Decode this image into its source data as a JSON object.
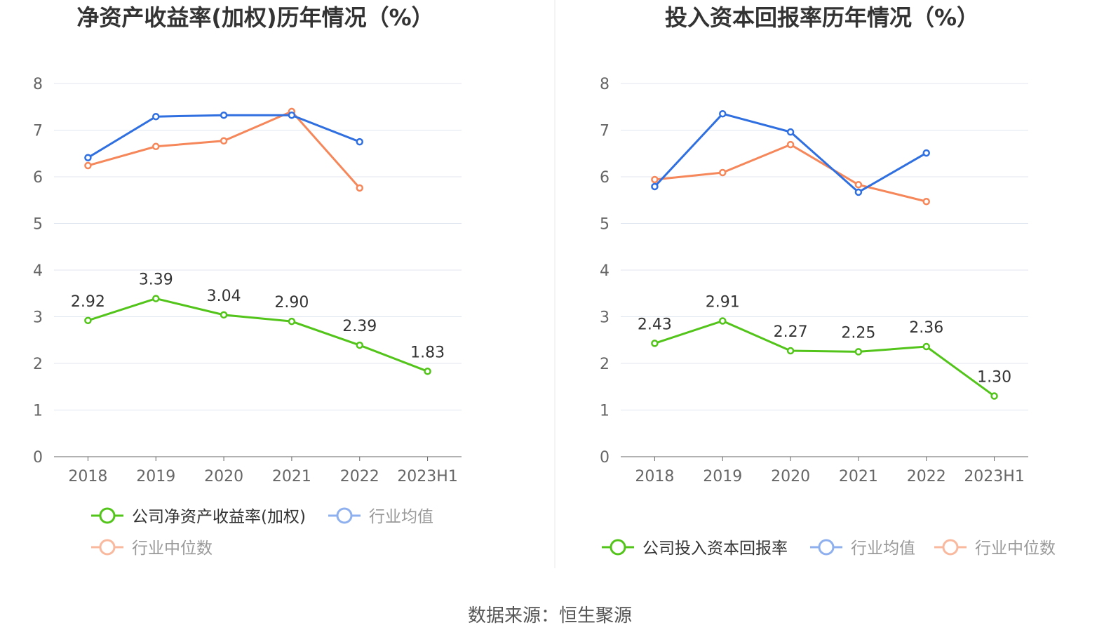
{
  "colors": {
    "company": "#52c41a",
    "avg": "#2f6fe0",
    "median": "#f5875a",
    "avg_legend": "#8fb0ee",
    "median_legend": "#f9b99e",
    "grid": "#e0e6f0"
  },
  "source": "数据来源：恒生聚源",
  "chart_data": [
    {
      "type": "line",
      "title": "净资产收益率(加权)历年情况（%）",
      "categories": [
        "2018",
        "2019",
        "2020",
        "2021",
        "2022",
        "2023H1"
      ],
      "ylim": [
        0,
        8
      ],
      "yticks": [
        "0",
        "1",
        "2",
        "3",
        "4",
        "5",
        "6",
        "7",
        "8"
      ],
      "series": [
        {
          "name": "公司净资产收益率(加权)",
          "key": "company",
          "values": [
            2.92,
            3.39,
            3.04,
            2.9,
            2.39,
            1.83
          ],
          "labels": [
            "2.92",
            "3.39",
            "3.04",
            "2.90",
            "2.39",
            "1.83"
          ]
        },
        {
          "name": "行业均值",
          "key": "avg",
          "values": [
            6.41,
            7.29,
            7.32,
            7.32,
            6.75,
            null
          ]
        },
        {
          "name": "行业中位数",
          "key": "median",
          "values": [
            6.24,
            6.65,
            6.77,
            7.4,
            5.76,
            null
          ]
        }
      ],
      "legend": "bottom"
    },
    {
      "type": "line",
      "title": "投入资本回报率历年情况（%）",
      "categories": [
        "2018",
        "2019",
        "2020",
        "2021",
        "2022",
        "2023H1"
      ],
      "ylim": [
        0,
        8
      ],
      "yticks": [
        "0",
        "1",
        "2",
        "3",
        "4",
        "5",
        "6",
        "7",
        "8"
      ],
      "series": [
        {
          "name": "公司投入资本回报率",
          "key": "company",
          "values": [
            2.43,
            2.91,
            2.27,
            2.25,
            2.36,
            1.3
          ],
          "labels": [
            "2.43",
            "2.91",
            "2.27",
            "2.25",
            "2.36",
            "1.30"
          ]
        },
        {
          "name": "行业均值",
          "key": "avg",
          "values": [
            5.79,
            7.35,
            6.96,
            5.67,
            6.51,
            null
          ]
        },
        {
          "name": "行业中位数",
          "key": "median",
          "values": [
            5.94,
            6.09,
            6.69,
            5.83,
            5.47,
            null
          ]
        }
      ],
      "legend": "bottom"
    }
  ]
}
